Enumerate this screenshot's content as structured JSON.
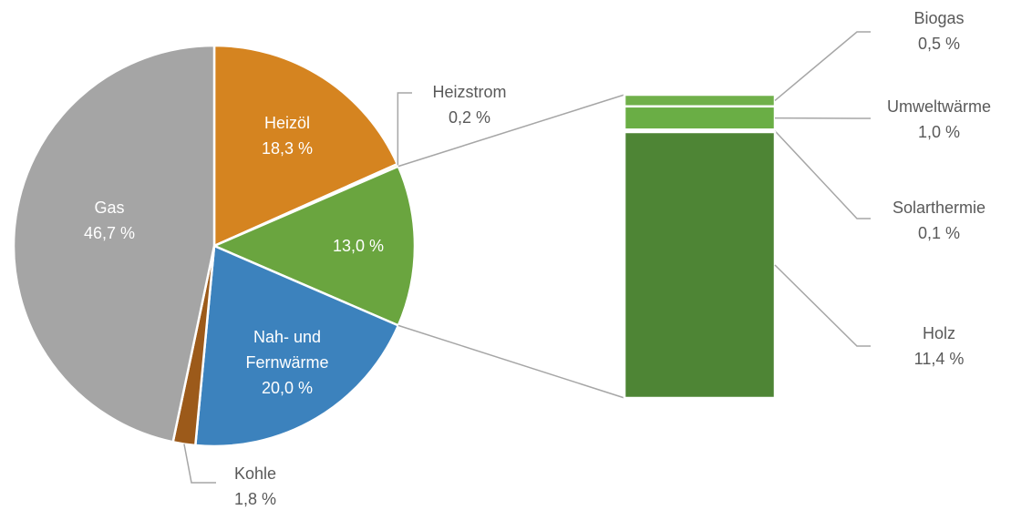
{
  "chart_data": {
    "type": "pie",
    "categories": [
      "Heizöl",
      "Heizstrom",
      null,
      "Nah- und Fernwärme",
      "Kohle",
      "Gas"
    ],
    "values": [
      18.3,
      0.2,
      13.0,
      20.0,
      1.8,
      46.7
    ],
    "value_labels": [
      "18,3 %",
      "0,2 %",
      "13,0 %",
      "20,0 %",
      "1,8 %",
      "46,7 %"
    ],
    "colors": [
      "#d58420",
      "#ffc000",
      "#6aa53f",
      "#3c82bd",
      "#9c5a1a",
      "#a5a5a5"
    ],
    "breakdown": {
      "categories": [
        "Biogas",
        "Umweltwärme",
        "Solarthermie",
        "Holz"
      ],
      "values": [
        0.5,
        1.0,
        0.1,
        11.4
      ],
      "value_labels": [
        "0,5 %",
        "1,0 %",
        "0,1 %",
        "11,4 %"
      ],
      "colors": [
        "#70b04a",
        "#6aae45",
        "#a9d18e",
        "#4e8535"
      ]
    }
  }
}
